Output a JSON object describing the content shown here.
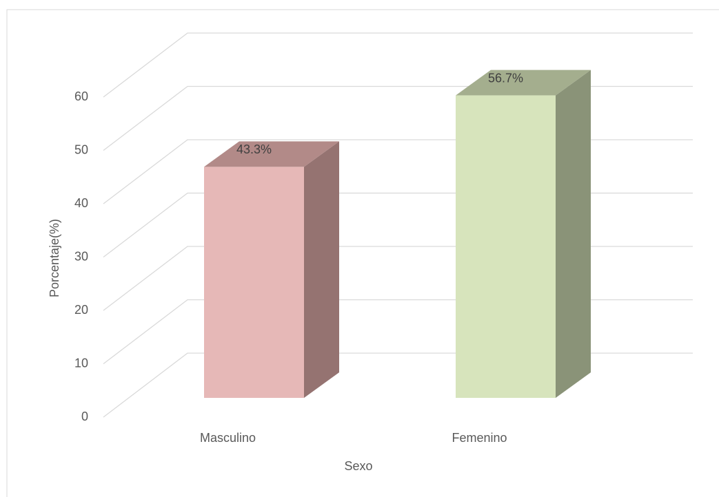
{
  "chart_data": {
    "type": "bar3d",
    "x_label": "Sexo",
    "y_label": "Porcentaje(%)",
    "categories": [
      "Masculino",
      "Femenino"
    ],
    "values": [
      43.3,
      56.7
    ],
    "value_labels": [
      "43.3%",
      "56.7%"
    ],
    "colors": [
      "#e6b8b7",
      "#d7e4bc"
    ],
    "side_colors": [
      "#957371",
      "#8a9378"
    ],
    "top_colors": [
      "#b28a88",
      "#a4ae8e"
    ],
    "ylim": [
      0,
      60
    ],
    "yticks": [
      0,
      10,
      20,
      30,
      40,
      50,
      60
    ],
    "grid": true
  }
}
